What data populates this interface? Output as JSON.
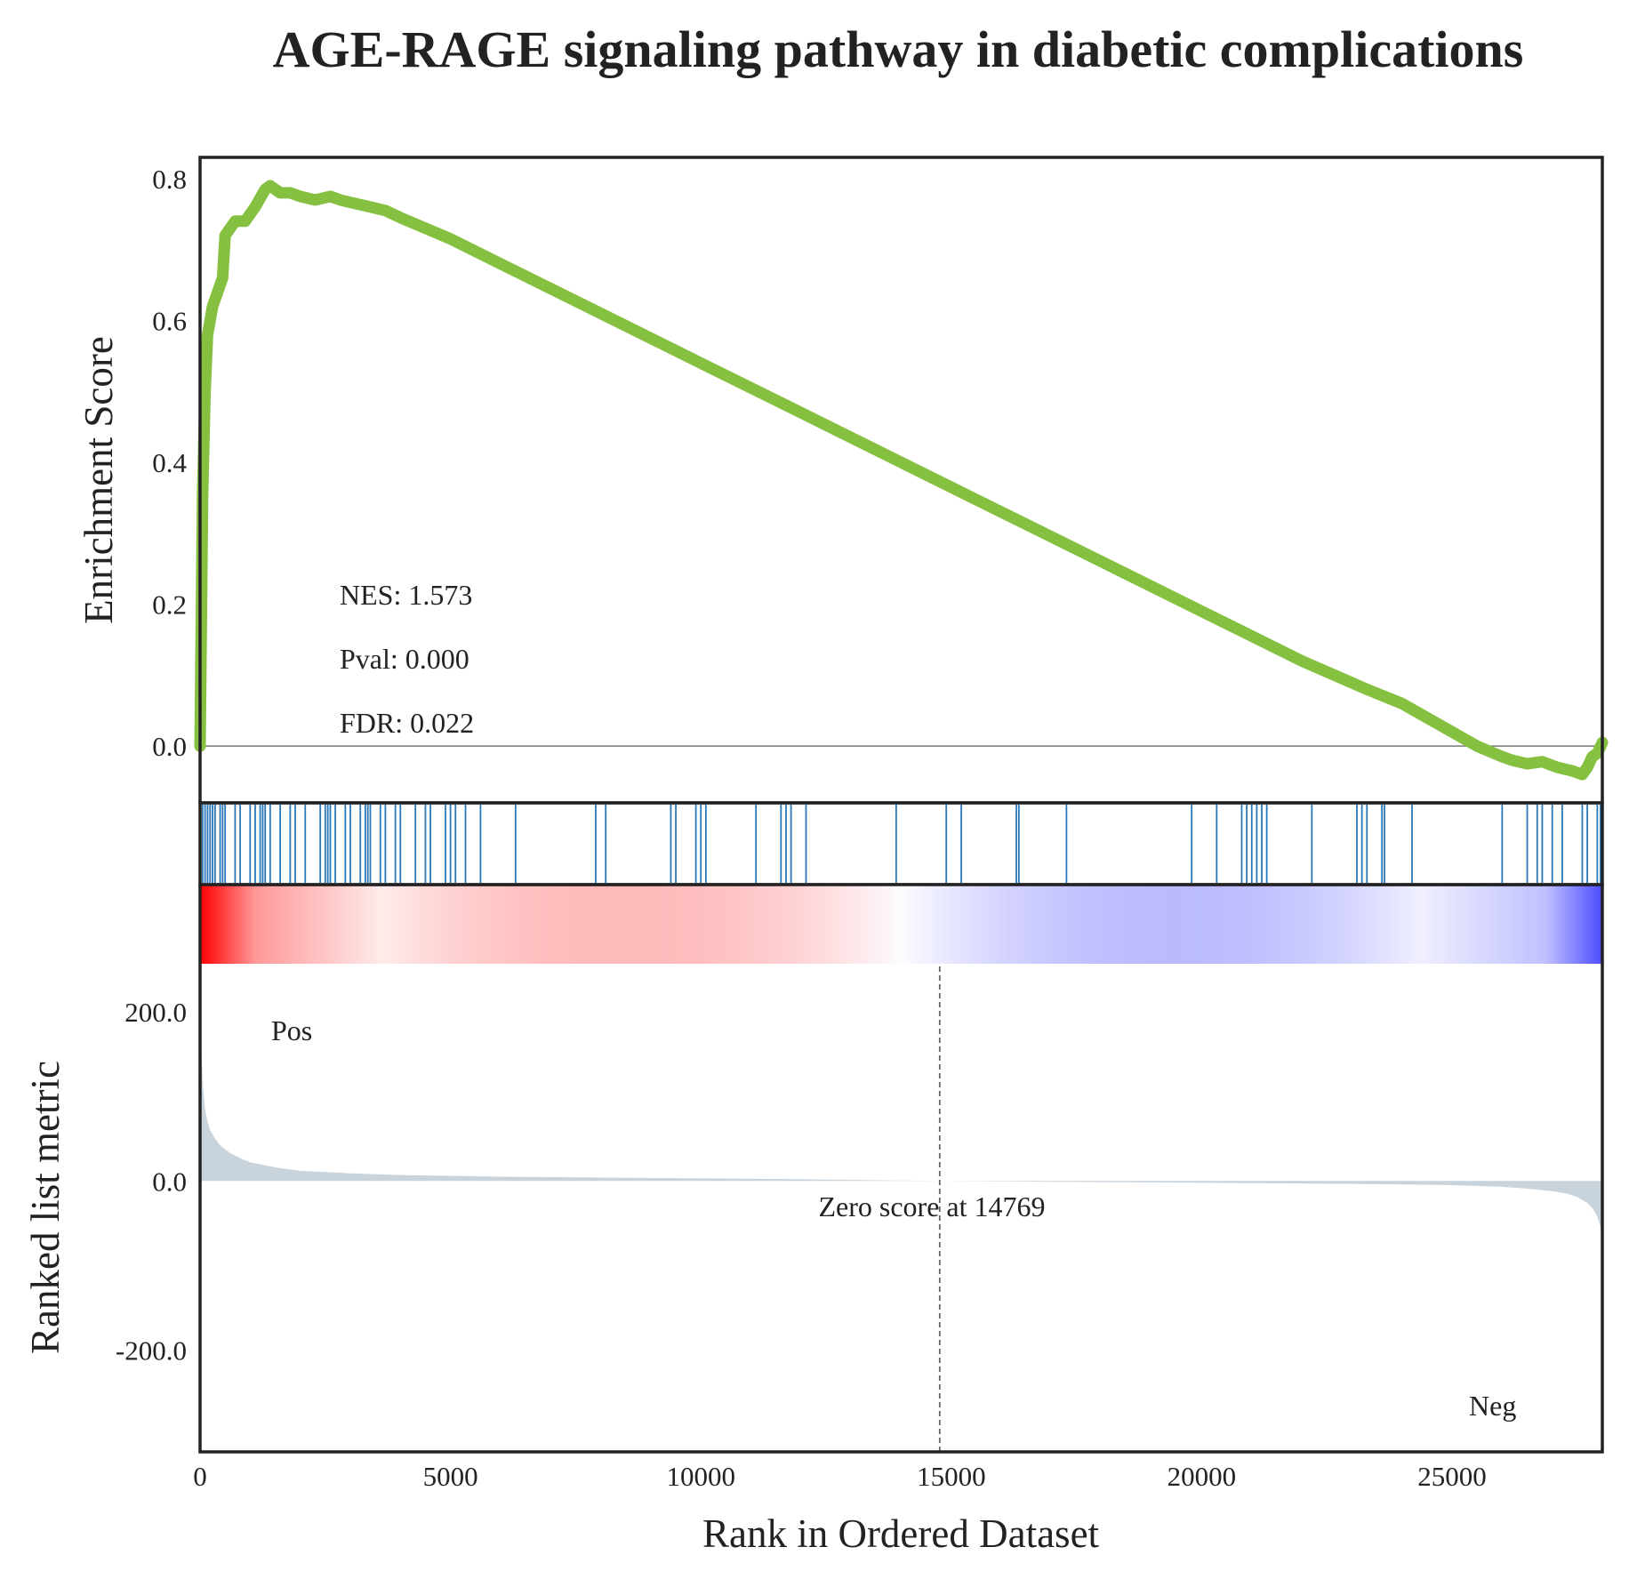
{
  "chart_data": {
    "type": "line",
    "title": "AGE-RAGE signaling pathway in diabetic complications",
    "xlabel": "Rank in Ordered Dataset",
    "xlim": [
      0,
      28000
    ],
    "x_ticks": [
      "0",
      "5000",
      "10000",
      "15000",
      "20000",
      "25000"
    ],
    "x_tick_values": [
      0,
      5000,
      10000,
      15000,
      20000,
      25000
    ],
    "enrichment": {
      "ylabel": "Enrichment Score",
      "ylim": [
        -0.08,
        0.83
      ],
      "y_ticks": [
        "0.0",
        "0.2",
        "0.4",
        "0.6",
        "0.8"
      ],
      "y_tick_values": [
        0.0,
        0.2,
        0.4,
        0.6,
        0.8
      ],
      "color": "#86c040",
      "x": [
        0,
        50,
        100,
        150,
        200,
        250,
        350,
        400,
        450,
        500,
        700,
        900,
        1100,
        1300,
        1400,
        1600,
        1800,
        2000,
        2300,
        2600,
        2800,
        3100,
        3400,
        3700,
        4000,
        5000,
        6000,
        8000,
        10000,
        12000,
        14000,
        16000,
        18000,
        20000,
        22000,
        23300,
        24000,
        24500,
        25000,
        25500,
        26000,
        26200,
        26500,
        26800,
        27100,
        27400,
        27600,
        27700,
        27800,
        27900,
        28000
      ],
      "values": [
        0.0,
        0.35,
        0.5,
        0.58,
        0.6,
        0.62,
        0.64,
        0.65,
        0.66,
        0.72,
        0.74,
        0.74,
        0.76,
        0.785,
        0.79,
        0.78,
        0.78,
        0.775,
        0.77,
        0.775,
        0.77,
        0.765,
        0.76,
        0.755,
        0.745,
        0.715,
        0.68,
        0.61,
        0.54,
        0.47,
        0.4,
        0.33,
        0.26,
        0.19,
        0.12,
        0.08,
        0.06,
        0.04,
        0.02,
        0.0,
        -0.015,
        -0.02,
        -0.025,
        -0.022,
        -0.03,
        -0.035,
        -0.04,
        -0.03,
        -0.015,
        -0.01,
        0.005
      ],
      "zero_line": 0.0,
      "stats": {
        "nes": "NES: 1.573",
        "pval": "Pval: 0.000",
        "fdr": "FDR: 0.022"
      }
    },
    "hits": {
      "color": "#2a78b8",
      "positions": [
        50,
        100,
        150,
        200,
        250,
        300,
        400,
        450,
        500,
        700,
        800,
        1000,
        1100,
        1200,
        1250,
        1300,
        1400,
        1600,
        1800,
        1900,
        2100,
        2400,
        2500,
        2550,
        2600,
        2700,
        2900,
        3000,
        3200,
        3300,
        3350,
        3400,
        3600,
        3700,
        3900,
        4000,
        4300,
        4500,
        4600,
        4900,
        5000,
        5100,
        5300,
        5600,
        6300,
        7900,
        8100,
        9400,
        9500,
        9900,
        10000,
        10100,
        11100,
        11600,
        11700,
        11800,
        12100,
        13900,
        14900,
        15200,
        16300,
        16350,
        17300,
        19800,
        20300,
        20800,
        20900,
        21000,
        21100,
        21200,
        21300,
        22200,
        23100,
        23200,
        23300,
        23600,
        23650,
        24200,
        26000,
        26500,
        26700,
        26800,
        27000,
        27200,
        27600,
        27700,
        27900,
        28000
      ]
    },
    "color_bar": {
      "positive_color": "#ff0000",
      "negative_color": "#0000ff"
    },
    "ranked_metric": {
      "ylabel": "Ranked list metric",
      "ylim": [
        -320,
        350
      ],
      "y_ticks": [
        "200.0",
        "0.0",
        "-200.0"
      ],
      "y_tick_values": [
        200,
        0,
        -200
      ],
      "fill_color": "#c8d3dc",
      "x": [
        0,
        30,
        60,
        100,
        150,
        200,
        300,
        400,
        600,
        800,
        1000,
        1500,
        2000,
        3000,
        4000,
        6000,
        8000,
        10000,
        12000,
        14769,
        17000,
        20000,
        22000,
        24000,
        25000,
        26000,
        26500,
        27000,
        27300,
        27500,
        27700,
        27800,
        27900,
        28000
      ],
      "values": [
        200,
        150,
        110,
        85,
        70,
        60,
        50,
        42,
        33,
        27,
        22,
        16,
        12,
        9,
        7,
        5,
        4,
        3,
        2,
        0,
        -1,
        -2,
        -3,
        -4,
        -5,
        -7,
        -9,
        -12,
        -15,
        -19,
        -26,
        -32,
        -42,
        -62
      ],
      "pos_label": "Pos",
      "neg_label": "Neg",
      "pos_color": "#ff0000",
      "neg_color": "#0000ff",
      "zero_cross": 14769,
      "zero_label": "Zero score at 14769"
    }
  }
}
